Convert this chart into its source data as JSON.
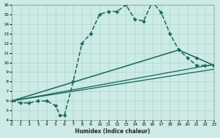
{
  "xlabel": "Humidex (Indice chaleur)",
  "xlim": [
    0,
    23
  ],
  "ylim": [
    4,
    16
  ],
  "xticks": [
    0,
    1,
    2,
    3,
    4,
    5,
    6,
    7,
    8,
    9,
    10,
    11,
    12,
    13,
    14,
    15,
    16,
    17,
    18,
    19,
    20,
    21,
    22,
    23
  ],
  "yticks": [
    4,
    5,
    6,
    7,
    8,
    9,
    10,
    11,
    12,
    13,
    14,
    15,
    16
  ],
  "bg_color": "#cceae6",
  "grid_color": "#aad4cc",
  "line_color": "#1a6b5a",
  "lines": [
    {
      "x": [
        0,
        1,
        2,
        3,
        4,
        5,
        5.5,
        6,
        7,
        8,
        9,
        10,
        11,
        12,
        13,
        14,
        15,
        16,
        17,
        18,
        19,
        20,
        21,
        22,
        23
      ],
      "y": [
        6,
        5.8,
        5.8,
        6.0,
        6.0,
        5.5,
        4.5,
        4.5,
        8.0,
        12.0,
        13.0,
        15.0,
        15.3,
        15.3,
        16.0,
        14.5,
        14.3,
        16.3,
        15.2,
        13.0,
        11.3,
        10.5,
        9.7,
        9.7,
        9.7
      ],
      "has_marker": true,
      "markersize": 2.5,
      "linewidth": 1.2,
      "linestyle": "--"
    },
    {
      "x": [
        0,
        23
      ],
      "y": [
        6.0,
        9.3
      ],
      "has_marker": false,
      "markersize": 0,
      "linewidth": 1.0,
      "linestyle": "-"
    },
    {
      "x": [
        0,
        23
      ],
      "y": [
        6.0,
        9.8
      ],
      "has_marker": false,
      "markersize": 0,
      "linewidth": 1.0,
      "linestyle": "-"
    },
    {
      "x": [
        0,
        19,
        21,
        23
      ],
      "y": [
        6.0,
        11.3,
        10.5,
        9.7
      ],
      "has_marker": true,
      "markersize": 2.5,
      "linewidth": 1.2,
      "linestyle": "-"
    }
  ]
}
